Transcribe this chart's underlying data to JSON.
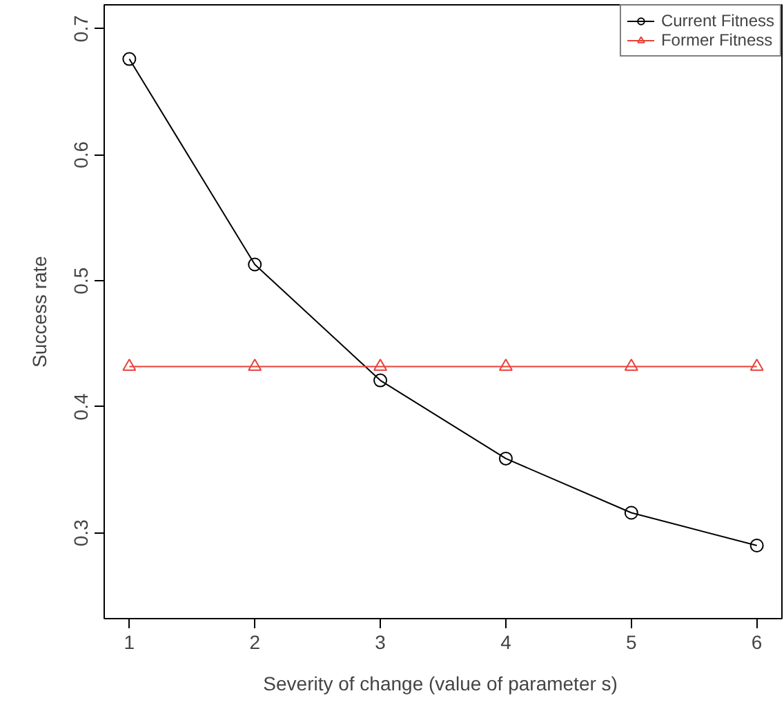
{
  "chart_data": {
    "type": "line",
    "xlabel": "Severity of change  (value of parameter s)",
    "ylabel": "Success rate",
    "x": [
      1,
      2,
      3,
      4,
      5,
      6
    ],
    "series": [
      {
        "name": "Current Fitness",
        "color": "#000000",
        "marker": "circle",
        "values": [
          0.676,
          0.513,
          0.421,
          0.359,
          0.316,
          0.29
        ]
      },
      {
        "name": "Former Fitness",
        "color": "#e8413a",
        "marker": "triangle",
        "values": [
          0.432,
          0.432,
          0.432,
          0.432,
          0.432,
          0.432
        ]
      }
    ],
    "xlim": [
      0.8,
      6.2
    ],
    "ylim": [
      0.232,
      0.719
    ],
    "xticks": [
      1,
      2,
      3,
      4,
      5,
      6
    ],
    "yticks": [
      0.3,
      0.4,
      0.5,
      0.6,
      0.7
    ],
    "grid": false,
    "legend": "top right",
    "line_style": "solid"
  }
}
